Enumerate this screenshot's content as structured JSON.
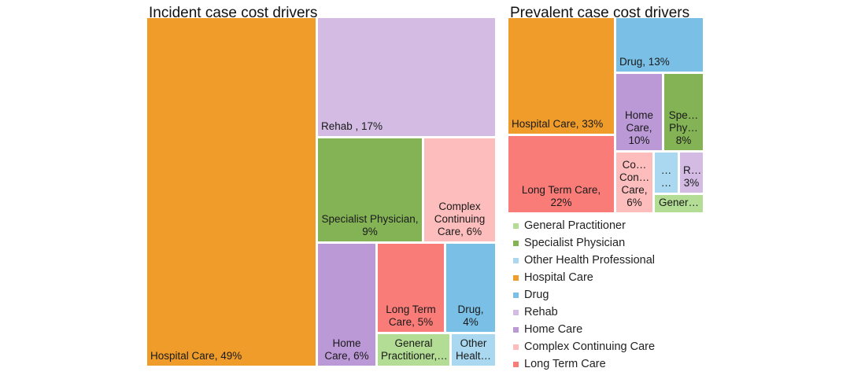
{
  "chart_data": [
    {
      "type": "treemap",
      "title": "Incident case cost drivers",
      "items": [
        {
          "category": "Hospital Care",
          "value": 49,
          "label": "Hospital Care, 49%",
          "align": "left"
        },
        {
          "category": "Rehab",
          "value": 17,
          "label": "Rehab , 17%",
          "align": "left"
        },
        {
          "category": "Specialist Physician",
          "value": 9,
          "label": "Specialist Physician,\n9%",
          "align": "center"
        },
        {
          "category": "Complex Continuing Care",
          "value": 6,
          "label": "Complex\nContinuing\nCare, 6%",
          "align": "center"
        },
        {
          "category": "Home Care",
          "value": 6,
          "label": "Home\nCare, 6%",
          "align": "center"
        },
        {
          "category": "Long Term Care",
          "value": 5,
          "label": "Long Term\nCare, 5%",
          "align": "center"
        },
        {
          "category": "Drug",
          "value": 4,
          "label": "Drug,\n4%",
          "align": "center"
        },
        {
          "category": "General Practitioner",
          "value": 3,
          "label": "General\nPractitioner,…",
          "align": "center"
        },
        {
          "category": "Other Health Professional",
          "value": 2,
          "label": "Other\nHealt…",
          "align": "center"
        }
      ]
    },
    {
      "type": "treemap",
      "title": "Prevalent case cost drivers",
      "items": [
        {
          "category": "Hospital Care",
          "value": 33,
          "label": "Hospital Care, 33%",
          "align": "left"
        },
        {
          "category": "Long Term Care",
          "value": 22,
          "label": "Long Term Care,\n22%",
          "align": "center"
        },
        {
          "category": "Drug",
          "value": 13,
          "label": "Drug, 13%",
          "align": "left"
        },
        {
          "category": "Home Care",
          "value": 10,
          "label": "Home\nCare,\n10%",
          "align": "center"
        },
        {
          "category": "Specialist Physician",
          "value": 8,
          "label": "Spe…\nPhy…\n8%",
          "align": "center"
        },
        {
          "category": "Complex Continuing Care",
          "value": 6,
          "label": "Co…\nCon…\nCare,\n6%",
          "align": "center"
        },
        {
          "category": "Other Health Professional",
          "value": 3,
          "label": "…\n…",
          "align": "center"
        },
        {
          "category": "Rehab",
          "value": 3,
          "label": "R…\n3%",
          "align": "center"
        },
        {
          "category": "General Practitioner",
          "value": 2,
          "label": "Gener…",
          "align": "center"
        }
      ]
    }
  ],
  "legend": {
    "position": "bottom-right",
    "items": [
      {
        "label": "General Practitioner",
        "color": "#b3dd94"
      },
      {
        "label": "Specialist Physician",
        "color": "#84b356"
      },
      {
        "label": "Other Health Professional",
        "color": "#a9d8f0"
      },
      {
        "label": "Hospital Care",
        "color": "#ef9c2a"
      },
      {
        "label": "Drug",
        "color": "#7abfe6"
      },
      {
        "label": "Rehab",
        "color": "#d3bbe3"
      },
      {
        "label": "Home Care",
        "color": "#bb98d6"
      },
      {
        "label": "Complex Continuing Care",
        "color": "#fdbdbd"
      },
      {
        "label": "Long Term Care",
        "color": "#f97c78"
      }
    ]
  }
}
